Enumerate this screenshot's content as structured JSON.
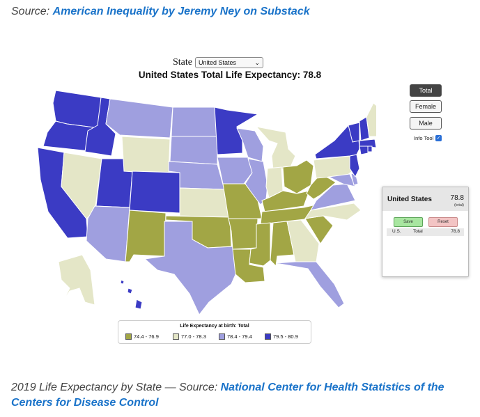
{
  "source_top": {
    "prefix": "Source: ",
    "link": "American Inequality by Jeremy Ney on Substack"
  },
  "controls": {
    "state_label": "State",
    "state_selected": "United States",
    "dropdown_arrow": "⌄"
  },
  "map_title": "United States Total Life Expectancy: 78.8",
  "buttons": {
    "total": "Total",
    "female": "Female",
    "male": "Male",
    "info_tool": "Info Tool",
    "info_tool_checked": true
  },
  "info_panel": {
    "name": "United States",
    "value": "78.8",
    "sub": "(total)",
    "save": "Save",
    "reset": "Reset",
    "row": {
      "col1": "U.S.",
      "col2": "Total",
      "col3": "78.8"
    }
  },
  "legend": {
    "title": "Life Expectancy at birth: Total",
    "items": [
      {
        "label": "74.4 - 76.9",
        "color": "#a2a645"
      },
      {
        "label": "77.0 - 78.3",
        "color": "#e4e6c7"
      },
      {
        "label": "78.4 - 79.4",
        "color": "#9f9fdf"
      },
      {
        "label": "79.5 - 80.9",
        "color": "#3b3bc4"
      }
    ]
  },
  "map_data": {
    "bins": {
      "A": "74.4 - 76.9",
      "B": "77.0 - 78.3",
      "C": "78.4 - 79.4",
      "D": "79.5 - 80.9"
    },
    "state_class": {
      "WA": "D",
      "OR": "D",
      "CA": "D",
      "ID": "D",
      "UT": "D",
      "CO": "D",
      "MN": "D",
      "NY": "D",
      "VT": "D",
      "NH": "D",
      "MA": "D",
      "CT": "D",
      "RI": "D",
      "NJ": "D",
      "HI": "D",
      "MT": "C",
      "ND": "C",
      "SD": "C",
      "NE": "C",
      "IA": "C",
      "WI": "C",
      "IL": "C",
      "AZ": "C",
      "TX": "C",
      "FL": "C",
      "VA": "C",
      "MD": "C",
      "DE": "C",
      "NV": "B",
      "WY": "B",
      "KS": "B",
      "MI": "B",
      "IN": "B",
      "PA": "B",
      "ME": "B",
      "NC": "B",
      "GA": "B",
      "AK": "B",
      "NM": "A",
      "OK": "A",
      "MO": "A",
      "AR": "A",
      "LA": "A",
      "MS": "A",
      "AL": "A",
      "TN": "A",
      "KY": "A",
      "OH": "A",
      "WV": "A",
      "SC": "A"
    }
  },
  "caption": {
    "prefix": "2019 Life Expectancy by State — Source: ",
    "link": "National Center for Health Statistics of the Centers for Disease Control"
  }
}
